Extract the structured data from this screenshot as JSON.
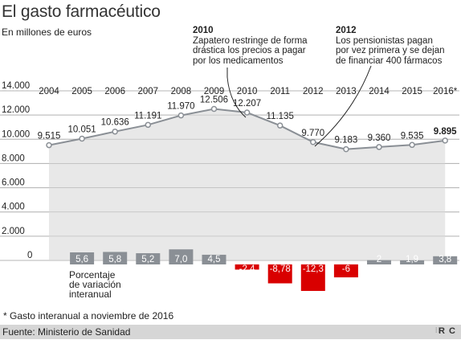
{
  "title": "El gasto farmacéutico",
  "subtitle": "En millones de euros",
  "annotations": [
    {
      "year": "2010",
      "text_lines": [
        "Zapatero restringe de forma",
        "drástica los precios a pagar",
        "por los medicamentos"
      ]
    },
    {
      "year": "2012",
      "text_lines": [
        "Los pensionistas pagan",
        "por vez primera y se dejan",
        "de financiar 400 fármacos"
      ]
    }
  ],
  "note": "* Gasto interanual a noviembre de 2016",
  "source": "Fuente: Ministerio de Sanidad",
  "logo": "R C",
  "colors": {
    "line": "#8a8f95",
    "area": "#e8e8e8",
    "bar_positive": "#8a8f95",
    "bar_negative": "#d90000",
    "grid": "#b5b5b5"
  },
  "chart_data": [
    {
      "type": "area",
      "title": "El gasto farmacéutico",
      "ylabel": "En millones de euros",
      "x": [
        "2004",
        "2005",
        "2006",
        "2007",
        "2008",
        "2009",
        "2010",
        "2011",
        "2012",
        "2013",
        "2014",
        "2015",
        "2016*"
      ],
      "value_labels": [
        "9.515",
        "10.051",
        "10.636",
        "11.191",
        "11.970",
        "12.506",
        "12.207",
        "11.135",
        "9.770",
        "9.183",
        "9.360",
        "9.535",
        "9.895"
      ],
      "series": [
        {
          "values": [
            9515,
            10051,
            10636,
            11191,
            11970,
            12506,
            12207,
            11135,
            9770,
            9183,
            9360,
            9535,
            9895
          ]
        }
      ],
      "ylim": [
        0,
        14000
      ],
      "yticks": [
        0,
        2000,
        4000,
        6000,
        8000,
        10000,
        12000,
        14000
      ],
      "ytick_labels": [
        "0",
        "2.000",
        "4.000",
        "6.000",
        "8.000",
        "10.000",
        "12.000",
        "14.000"
      ],
      "grid": true,
      "emphasized_label_index": 12
    },
    {
      "type": "bar",
      "label": "Porcentaje de variación interanual",
      "label_lines": [
        "Porcentaje",
        "de variación",
        "interanual"
      ],
      "categories": [
        "2005",
        "2006",
        "2007",
        "2008",
        "2009",
        "2010",
        "2011",
        "2012",
        "2013",
        "2014",
        "2015",
        "2016*"
      ],
      "values": [
        5.6,
        5.8,
        5.2,
        7.0,
        4.5,
        -2.4,
        -8.78,
        -12.3,
        -6,
        2,
        1.9,
        3.8
      ],
      "value_labels": [
        "5,6",
        "5,8",
        "5,2",
        "7,0",
        "4,5",
        "-2,4",
        "-8,78",
        "-12,3",
        "-6",
        "2",
        "1,9",
        "3,8"
      ]
    }
  ]
}
